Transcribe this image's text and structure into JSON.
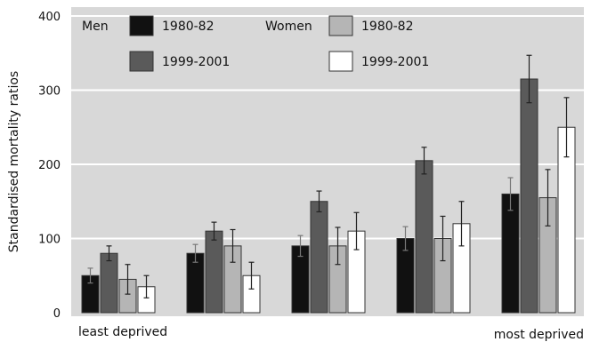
{
  "chart_data": {
    "type": "bar",
    "ylabel": "Standardised mortality ratios",
    "ylim": [
      0,
      400
    ],
    "yticks": [
      "0",
      "100",
      "200",
      "300",
      "400"
    ],
    "grid": true,
    "legend_position": "top-left",
    "legend": {
      "men_label": "Men",
      "women_label": "Women"
    },
    "x_end_labels": [
      "least deprived",
      "most deprived"
    ],
    "categories": [
      "",
      "",
      "",
      "",
      ""
    ],
    "series": [
      {
        "name": "1980-82",
        "group": "Men",
        "color": "#111111",
        "values": [
          50,
          80,
          90,
          100,
          160
        ],
        "err": [
          10,
          12,
          14,
          16,
          22
        ]
      },
      {
        "name": "1999-2001",
        "group": "Men",
        "color": "#5a5a5a",
        "values": [
          80,
          110,
          150,
          205,
          315
        ],
        "err": [
          10,
          12,
          14,
          18,
          32
        ]
      },
      {
        "name": "1980-82",
        "group": "Women",
        "color": "#b5b5b5",
        "values": [
          45,
          90,
          90,
          100,
          155
        ],
        "err": [
          20,
          22,
          25,
          30,
          38
        ]
      },
      {
        "name": "1999-2001",
        "group": "Women",
        "color": "#ffffff",
        "values": [
          35,
          50,
          110,
          120,
          250
        ],
        "err": [
          15,
          18,
          25,
          30,
          40
        ]
      }
    ]
  }
}
